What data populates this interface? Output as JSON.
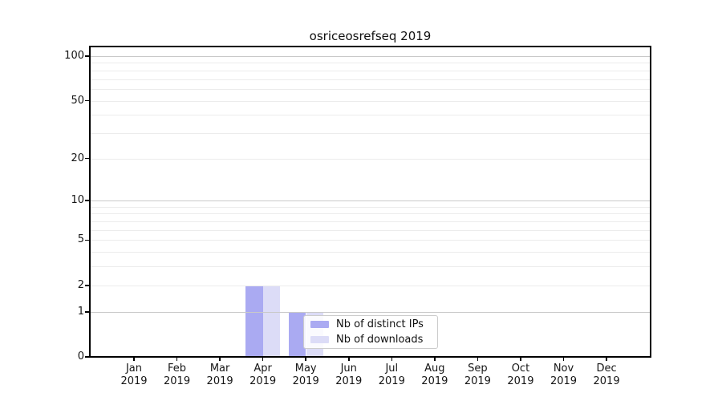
{
  "chart_data": {
    "type": "bar",
    "title": "osriceosrefseq 2019",
    "x_months": [
      "Jan",
      "Feb",
      "Mar",
      "Apr",
      "May",
      "Jun",
      "Jul",
      "Aug",
      "Sep",
      "Oct",
      "Nov",
      "Dec"
    ],
    "x_year": "2019",
    "series": [
      {
        "name": "Nb of distinct IPs",
        "color": "#aaaaf2",
        "values": [
          0,
          0,
          0,
          2,
          1,
          0,
          0,
          0,
          0,
          0,
          0,
          0
        ]
      },
      {
        "name": "Nb of downloads",
        "color": "#dcdcf7",
        "values": [
          0,
          0,
          0,
          2,
          1,
          0,
          0,
          0,
          0,
          0,
          0,
          0
        ]
      }
    ],
    "y_scale": "log1p",
    "y_ticks": [
      0,
      1,
      2,
      5,
      10,
      20,
      50,
      100
    ],
    "y_major_gridlines": [
      1,
      10,
      100
    ],
    "y_minor_gridlines": [
      2,
      3,
      4,
      5,
      6,
      7,
      8,
      9,
      20,
      30,
      40,
      50,
      60,
      70,
      80,
      90
    ],
    "ylim": [
      0,
      110
    ],
    "grid": "horizontal, drawn above bars",
    "legend_position": "lower center",
    "style": {
      "grid_major_color": "#c9c9c9",
      "grid_minor_color": "#ececec",
      "spine_color": "#000000",
      "text_color": "#151515",
      "legend_bg": "rgba(255,255,255,0.85)",
      "legend_border": "#cccccc",
      "background": "#ffffff"
    }
  }
}
